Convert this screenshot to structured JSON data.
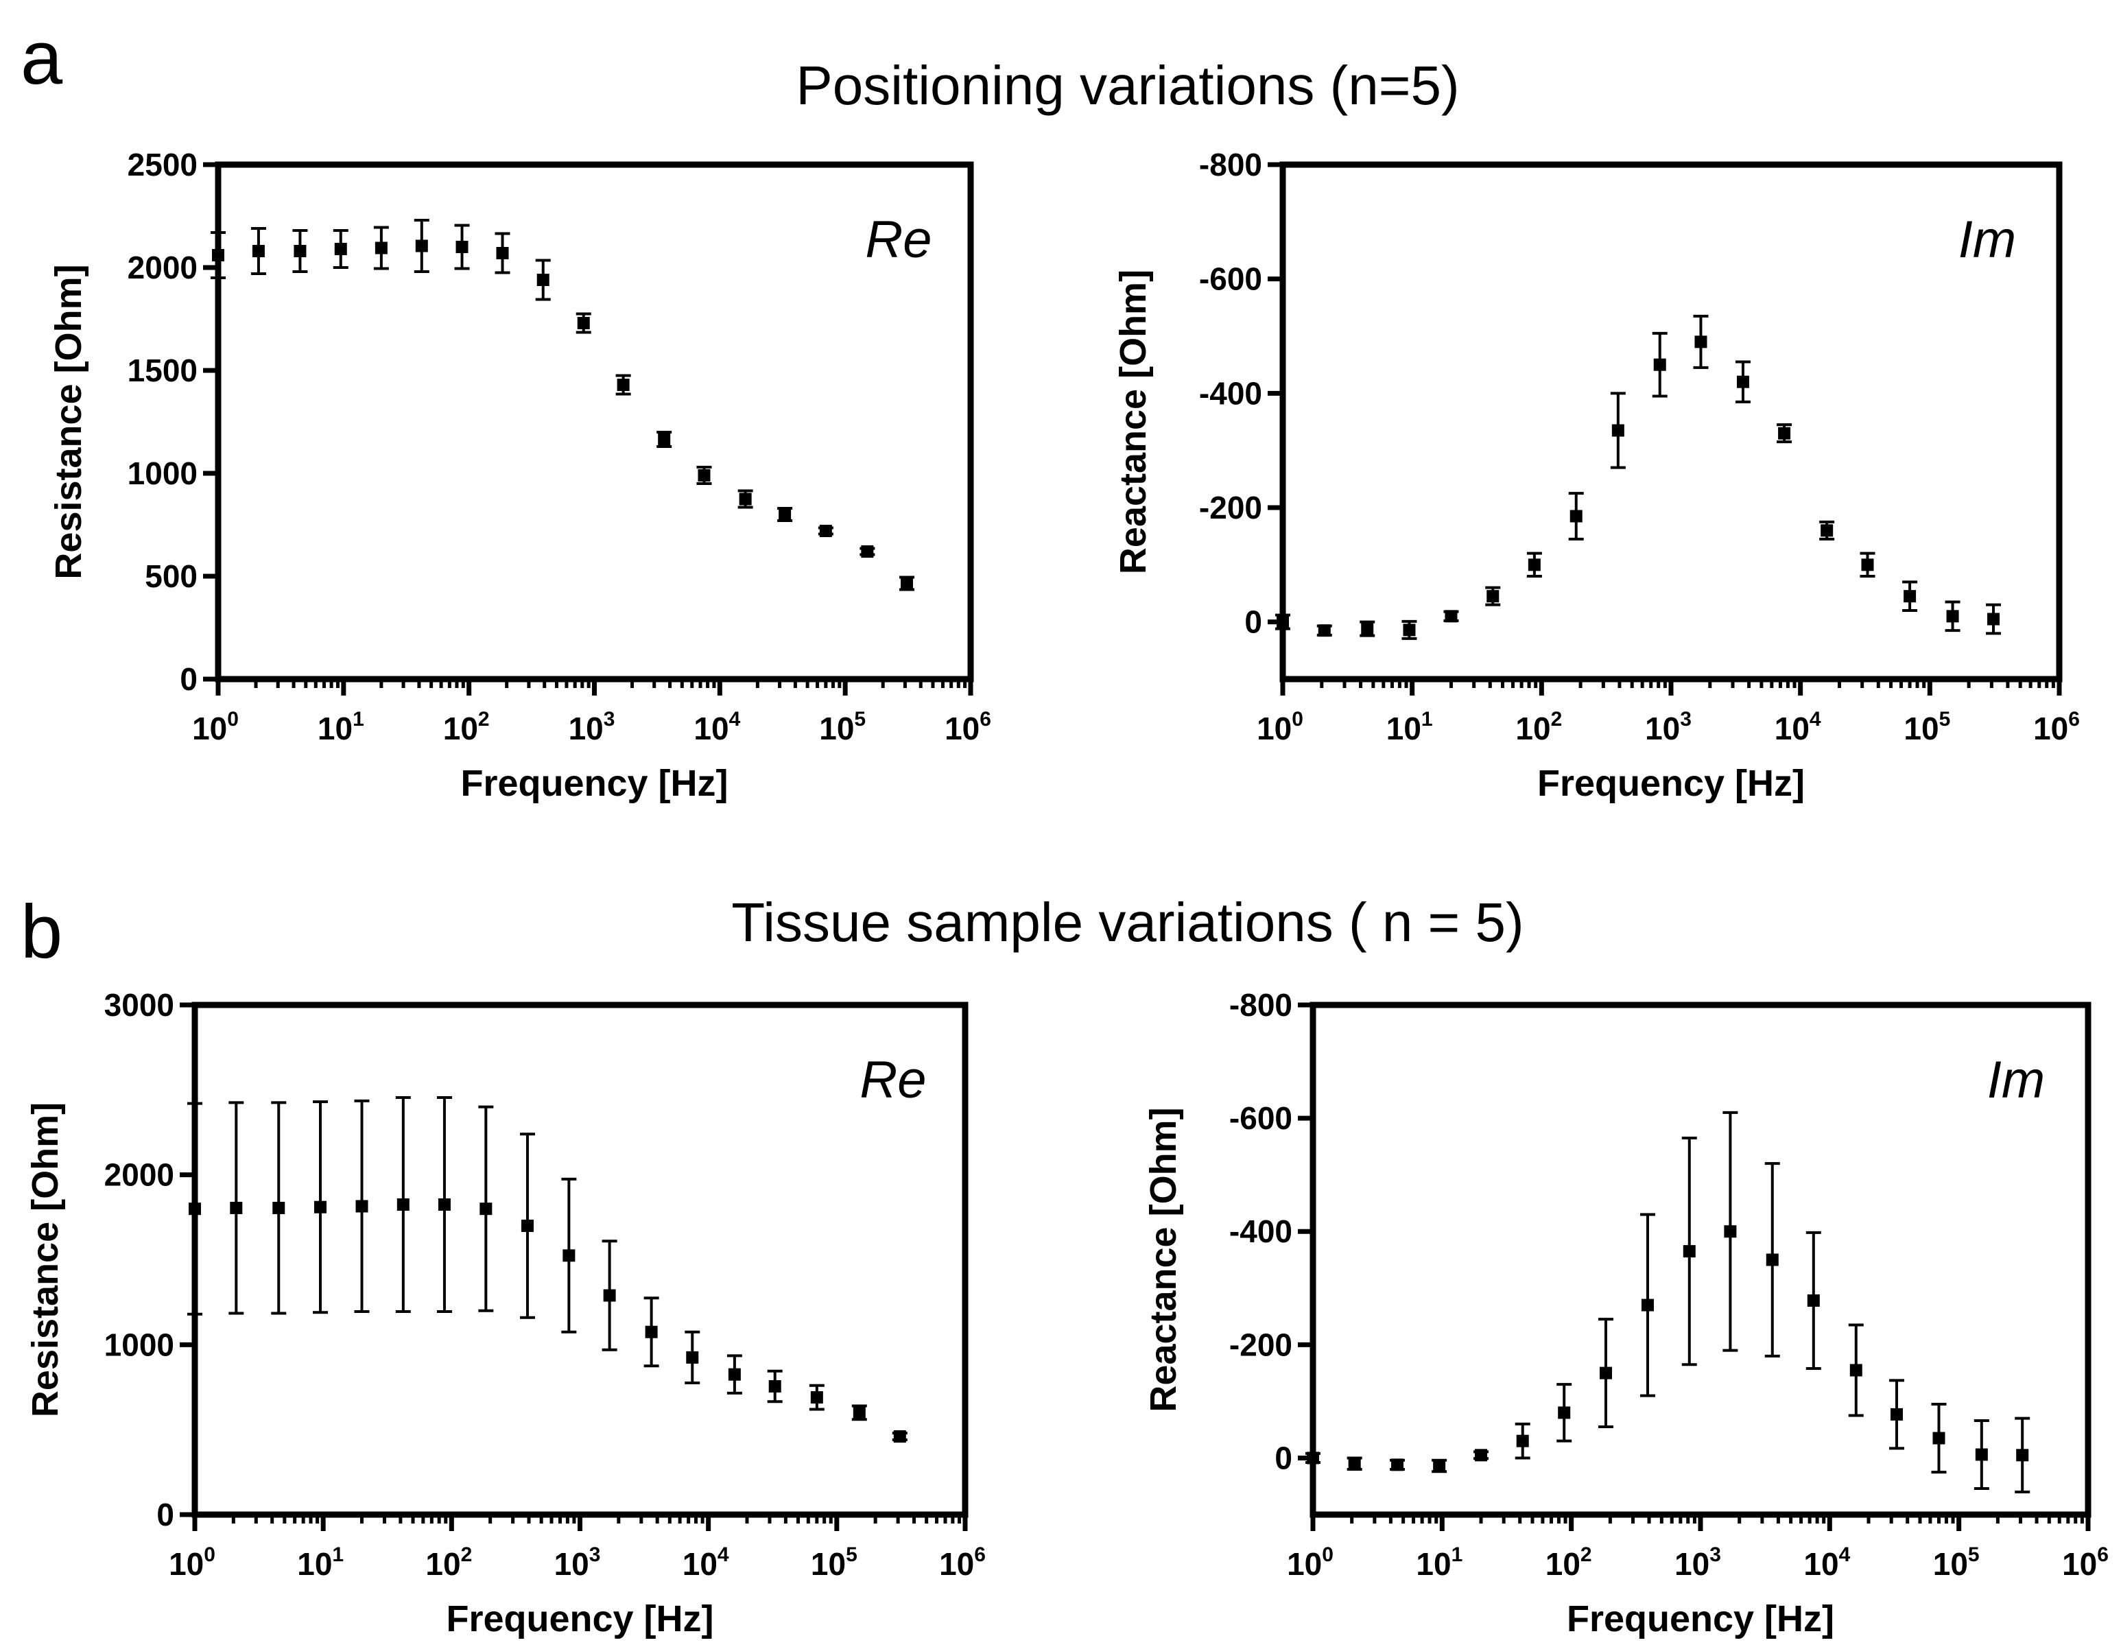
{
  "figure": {
    "panel_a": {
      "label": "a",
      "title": "Positioning variations (n=5)"
    },
    "panel_b": {
      "label": "b",
      "title": "Tissue sample variations ( n = 5)"
    }
  },
  "colors": {
    "ink": "#000000",
    "background": "#ffffff"
  },
  "chart_data": [
    {
      "id": "a-re",
      "type": "scatter",
      "panel_label": "Re",
      "xlabel": "Frequency [Hz]",
      "ylabel": "Resistance [Ohm]",
      "x_scale": "log10",
      "xlim": [
        1,
        1000000
      ],
      "x_ticks": [
        {
          "base": "10",
          "exp": "0",
          "value": 1
        },
        {
          "base": "10",
          "exp": "1",
          "value": 10
        },
        {
          "base": "10",
          "exp": "2",
          "value": 100
        },
        {
          "base": "10",
          "exp": "3",
          "value": 1000
        },
        {
          "base": "10",
          "exp": "4",
          "value": 10000
        },
        {
          "base": "10",
          "exp": "5",
          "value": 100000
        },
        {
          "base": "10",
          "exp": "6",
          "value": 1000000
        }
      ],
      "ylim": [
        0,
        2500
      ],
      "y_ticks": [
        {
          "label": "0",
          "value": 0
        },
        {
          "label": "500",
          "value": 500
        },
        {
          "label": "1000",
          "value": 1000
        },
        {
          "label": "1500",
          "value": 1500
        },
        {
          "label": "2000",
          "value": 2000
        },
        {
          "label": "2500",
          "value": 2500
        }
      ],
      "x": [
        1,
        2.1,
        4.5,
        9.5,
        20,
        42,
        88,
        185,
        390,
        820,
        1700,
        3600,
        7500,
        16000,
        33000,
        70000,
        150000,
        310000
      ],
      "y": [
        2060,
        2080,
        2080,
        2090,
        2095,
        2105,
        2100,
        2070,
        1940,
        1730,
        1430,
        1165,
        990,
        875,
        800,
        720,
        620,
        465
      ],
      "err": [
        110,
        110,
        100,
        90,
        100,
        125,
        105,
        95,
        95,
        45,
        45,
        35,
        40,
        40,
        30,
        15,
        15,
        30
      ]
    },
    {
      "id": "a-im",
      "type": "scatter",
      "panel_label": "Im",
      "xlabel": "Frequency [Hz]",
      "ylabel": "Reactance  [Ohm]",
      "x_scale": "log10",
      "xlim": [
        1,
        1000000
      ],
      "x_ticks": [
        {
          "base": "10",
          "exp": "0",
          "value": 1
        },
        {
          "base": "10",
          "exp": "1",
          "value": 10
        },
        {
          "base": "10",
          "exp": "2",
          "value": 100
        },
        {
          "base": "10",
          "exp": "3",
          "value": 1000
        },
        {
          "base": "10",
          "exp": "4",
          "value": 10000
        },
        {
          "base": "10",
          "exp": "5",
          "value": 100000
        },
        {
          "base": "10",
          "exp": "6",
          "value": 1000000
        }
      ],
      "ylim": [
        100,
        -800
      ],
      "y_ticks": [
        {
          "label": "0",
          "value": 0
        },
        {
          "label": "-200",
          "value": -200
        },
        {
          "label": "-400",
          "value": -400
        },
        {
          "label": "-600",
          "value": -600
        },
        {
          "label": "-800",
          "value": -800
        }
      ],
      "x": [
        1,
        2.1,
        4.5,
        9.5,
        20,
        42,
        88,
        185,
        390,
        820,
        1700,
        3600,
        7500,
        16000,
        33000,
        70000,
        150000,
        310000
      ],
      "y": [
        0,
        15,
        12,
        14,
        -10,
        -45,
        -100,
        -185,
        -335,
        -450,
        -490,
        -420,
        -330,
        -160,
        -100,
        -45,
        -10,
        -5
      ],
      "err": [
        12,
        8,
        12,
        15,
        8,
        15,
        20,
        40,
        65,
        55,
        45,
        35,
        15,
        15,
        20,
        25,
        25,
        25
      ]
    },
    {
      "id": "b-re",
      "type": "scatter",
      "panel_label": "Re",
      "xlabel": "Frequency [Hz]",
      "ylabel": "Resistance [Ohm]",
      "x_scale": "log10",
      "xlim": [
        1,
        1000000
      ],
      "x_ticks": [
        {
          "base": "10",
          "exp": "0",
          "value": 1
        },
        {
          "base": "10",
          "exp": "1",
          "value": 10
        },
        {
          "base": "10",
          "exp": "2",
          "value": 100
        },
        {
          "base": "10",
          "exp": "3",
          "value": 1000
        },
        {
          "base": "10",
          "exp": "4",
          "value": 10000
        },
        {
          "base": "10",
          "exp": "5",
          "value": 100000
        },
        {
          "base": "10",
          "exp": "6",
          "value": 1000000
        }
      ],
      "ylim": [
        0,
        3000
      ],
      "y_ticks": [
        {
          "label": "0",
          "value": 0
        },
        {
          "label": "1000",
          "value": 1000
        },
        {
          "label": "2000",
          "value": 2000
        },
        {
          "label": "3000",
          "value": 3000
        }
      ],
      "x": [
        1,
        2.1,
        4.5,
        9.5,
        20,
        42,
        88,
        185,
        390,
        820,
        1700,
        3600,
        7500,
        16000,
        33000,
        70000,
        150000,
        310000
      ],
      "y": [
        1800,
        1805,
        1805,
        1810,
        1815,
        1825,
        1825,
        1800,
        1700,
        1525,
        1290,
        1075,
        925,
        825,
        755,
        690,
        600,
        460
      ],
      "err": [
        620,
        620,
        620,
        620,
        620,
        630,
        630,
        600,
        540,
        450,
        320,
        200,
        150,
        110,
        90,
        70,
        40,
        20
      ]
    },
    {
      "id": "b-im",
      "type": "scatter",
      "panel_label": "Im",
      "xlabel": "Frequency [Hz]",
      "ylabel": "Reactance  [Ohm]",
      "x_scale": "log10",
      "xlim": [
        1,
        1000000
      ],
      "x_ticks": [
        {
          "base": "10",
          "exp": "0",
          "value": 1
        },
        {
          "base": "10",
          "exp": "1",
          "value": 10
        },
        {
          "base": "10",
          "exp": "2",
          "value": 100
        },
        {
          "base": "10",
          "exp": "3",
          "value": 1000
        },
        {
          "base": "10",
          "exp": "4",
          "value": 10000
        },
        {
          "base": "10",
          "exp": "5",
          "value": 100000
        },
        {
          "base": "10",
          "exp": "6",
          "value": 1000000
        }
      ],
      "ylim": [
        100,
        -800
      ],
      "y_ticks": [
        {
          "label": "0",
          "value": 0
        },
        {
          "label": "-200",
          "value": -200
        },
        {
          "label": "-400",
          "value": -400
        },
        {
          "label": "-600",
          "value": -600
        },
        {
          "label": "-800",
          "value": -800
        }
      ],
      "x": [
        1,
        2.1,
        4.5,
        9.5,
        20,
        42,
        88,
        185,
        390,
        820,
        1700,
        3600,
        7500,
        16000,
        33000,
        70000,
        150000,
        310000
      ],
      "y": [
        0,
        10,
        12,
        14,
        -5,
        -30,
        -80,
        -150,
        -270,
        -365,
        -400,
        -350,
        -278,
        -155,
        -77,
        -35,
        -6,
        -5
      ],
      "err": [
        8,
        10,
        8,
        10,
        6,
        30,
        50,
        95,
        160,
        200,
        210,
        170,
        120,
        80,
        60,
        60,
        60,
        65
      ]
    }
  ]
}
